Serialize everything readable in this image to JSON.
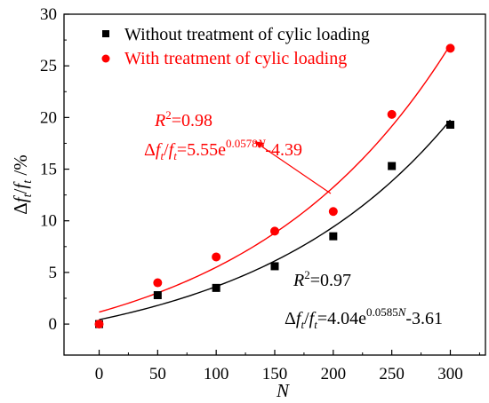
{
  "chart_data": {
    "type": "scatter",
    "title": "",
    "xlabel": "N",
    "ylabel_parts": [
      "Δ",
      "f",
      "t",
      "/",
      "f",
      "t",
      " /%"
    ],
    "xlim": [
      -30,
      330
    ],
    "ylim": [
      -3,
      30
    ],
    "xticks": [
      0,
      50,
      100,
      150,
      200,
      250,
      300
    ],
    "yticks": [
      0,
      5,
      10,
      15,
      20,
      25,
      30
    ],
    "tick_labels_x": [
      "0",
      "50",
      "100",
      "150",
      "200",
      "250",
      "300"
    ],
    "tick_labels_y": [
      "0",
      "5",
      "10",
      "15",
      "20",
      "25",
      "30"
    ],
    "legend_position": "top-left",
    "series": [
      {
        "name": "Without treatment of cylic loading",
        "color": "#000000",
        "marker": "square",
        "x": [
          0,
          50,
          100,
          150,
          200,
          250,
          300
        ],
        "y": [
          0,
          2.8,
          3.5,
          5.6,
          8.5,
          15.3,
          19.3
        ],
        "fit": {
          "a": 4.04,
          "b": 0.0585,
          "c": -3.61
        },
        "r2_label": "=0.97",
        "eq_coef": "=4.04e",
        "eq_exp": "0.0585",
        "eq_tail": "-3.61"
      },
      {
        "name": "With treatment of cylic loading",
        "color": "#ff0000",
        "marker": "circle",
        "x": [
          0,
          50,
          100,
          150,
          200,
          250,
          300
        ],
        "y": [
          0,
          4.0,
          6.5,
          9.0,
          10.9,
          20.3,
          26.7
        ],
        "fit": {
          "a": 5.55,
          "b": 0.0578,
          "c": -4.39
        },
        "r2_label": "=0.98",
        "eq_coef": "=5.55e",
        "eq_exp": "0.0578",
        "eq_tail": "-4.39"
      }
    ],
    "annotation_symbols": {
      "r2_base": "R",
      "r2_sup": "2",
      "delta": "Δ",
      "f": "f",
      "t": "t",
      "slash": "/",
      "N": "N"
    }
  }
}
